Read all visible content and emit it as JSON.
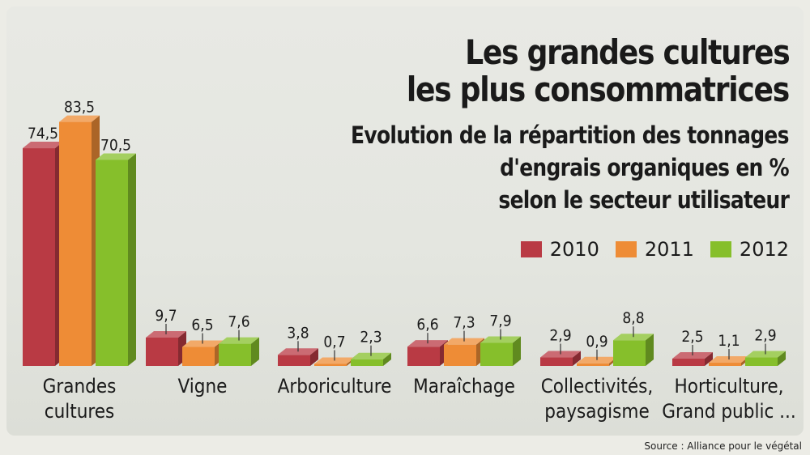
{
  "title": "Les grandes cultures",
  "title_line2": "les plus consommatrices",
  "subtitle": "Evolution de la répartition des tonnages",
  "subtitle_line2": "d'engrais organiques en %",
  "subtitle_line3": "selon le secteur utilisateur",
  "source": "Source : Alliance pour le végétal",
  "chart_data": {
    "type": "bar",
    "categories": [
      "Grandes cultures",
      "Vigne",
      "Arboriculture",
      "Maraîchage",
      "Collectivités, paysagisme",
      "Horticulture, Grand public ..."
    ],
    "category_lines": [
      [
        "Grandes",
        "cultures"
      ],
      [
        "Vigne"
      ],
      [
        "Arboriculture"
      ],
      [
        "Maraîchage"
      ],
      [
        "Collectivités,",
        "paysagisme"
      ],
      [
        "Horticulture,",
        "Grand public ..."
      ]
    ],
    "series": [
      {
        "name": "2010",
        "color": "#b93a44",
        "values": [
          74.5,
          9.7,
          3.8,
          6.6,
          2.9,
          2.5
        ],
        "labels": [
          "74,5",
          "9,7",
          "3,8",
          "6,6",
          "2,9",
          "2,5"
        ]
      },
      {
        "name": "2011",
        "color": "#ee8c36",
        "values": [
          83.5,
          6.5,
          0.7,
          7.3,
          0.9,
          1.1
        ],
        "labels": [
          "83,5",
          "6,5",
          "0,7",
          "7,3",
          "0,9",
          "1,1"
        ]
      },
      {
        "name": "2012",
        "color": "#86bf2b",
        "values": [
          70.5,
          7.6,
          2.3,
          7.9,
          8.8,
          2.9
        ],
        "labels": [
          "70,5",
          "7,6",
          "2,3",
          "7,9",
          "8,8",
          "2,9"
        ]
      }
    ],
    "legend_position": "right",
    "grid": false
  }
}
